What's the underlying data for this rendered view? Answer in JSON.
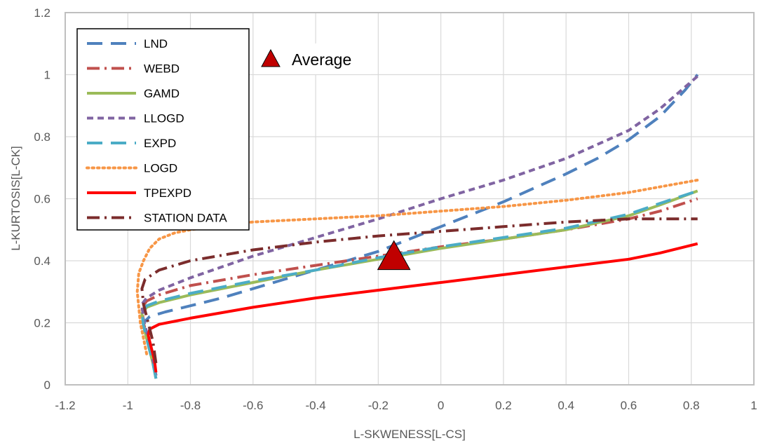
{
  "chart_data": {
    "type": "line",
    "title": "",
    "xlabel": "L-SKWENESS[L-CS]",
    "ylabel": "L-KURTOSIS[L-CK]",
    "xlim": [
      -1.2,
      1
    ],
    "ylim": [
      0,
      1.2
    ],
    "x_ticks": [
      -1.2,
      -1,
      -0.8,
      -0.6,
      -0.4,
      -0.2,
      0,
      0.2,
      0.4,
      0.6,
      0.8,
      1
    ],
    "x_tick_labels": [
      "-1.2",
      "-1",
      "-0.8",
      "-0.6",
      "-0.4",
      "-0.2",
      "0",
      "0.2",
      "0.4",
      "0.6",
      "0.8",
      "1"
    ],
    "y_ticks": [
      0,
      0.2,
      0.4,
      0.6,
      0.8,
      1,
      1.2
    ],
    "y_tick_labels": [
      "0",
      "0.2",
      "0.4",
      "0.6",
      "0.8",
      "1",
      "1.2"
    ],
    "grid": true,
    "legend_position": "top-left",
    "series": [
      {
        "name": "LND",
        "color": "#4f81bd",
        "dash": "long-dash",
        "x": [
          -0.91,
          -0.915,
          -0.93,
          -0.945,
          -0.95,
          -0.93,
          -0.88,
          -0.8,
          -0.7,
          -0.6,
          -0.5,
          -0.4,
          -0.3,
          -0.2,
          -0.1,
          0,
          0.1,
          0.2,
          0.3,
          0.4,
          0.5,
          0.6,
          0.7,
          0.78,
          0.82
        ],
        "values": [
          0.03,
          0.06,
          0.12,
          0.17,
          0.2,
          0.22,
          0.235,
          0.255,
          0.28,
          0.31,
          0.34,
          0.37,
          0.4,
          0.43,
          0.47,
          0.51,
          0.55,
          0.59,
          0.635,
          0.68,
          0.73,
          0.79,
          0.865,
          0.95,
          1.0
        ]
      },
      {
        "name": "WEBD",
        "color": "#c0504d",
        "dash": "dash-dot",
        "x": [
          -0.91,
          -0.92,
          -0.935,
          -0.95,
          -0.955,
          -0.94,
          -0.9,
          -0.8,
          -0.6,
          -0.4,
          -0.2,
          0,
          0.2,
          0.4,
          0.6,
          0.7,
          0.82
        ],
        "values": [
          0.03,
          0.08,
          0.14,
          0.2,
          0.25,
          0.27,
          0.29,
          0.32,
          0.355,
          0.385,
          0.415,
          0.445,
          0.47,
          0.5,
          0.535,
          0.56,
          0.6
        ]
      },
      {
        "name": "GAMD",
        "color": "#9bbb59",
        "dash": "solid",
        "x": [
          -0.91,
          -0.92,
          -0.935,
          -0.95,
          -0.955,
          -0.94,
          -0.9,
          -0.8,
          -0.6,
          -0.4,
          -0.2,
          0,
          0.2,
          0.4,
          0.6,
          0.7,
          0.82
        ],
        "values": [
          0.02,
          0.07,
          0.13,
          0.19,
          0.23,
          0.25,
          0.265,
          0.29,
          0.33,
          0.37,
          0.405,
          0.44,
          0.47,
          0.5,
          0.545,
          0.58,
          0.625
        ]
      },
      {
        "name": "LLOGD",
        "color": "#8064a2",
        "dash": "short-dash",
        "x": [
          -0.91,
          -0.92,
          -0.935,
          -0.95,
          -0.955,
          -0.94,
          -0.9,
          -0.8,
          -0.6,
          -0.4,
          -0.2,
          0,
          0.2,
          0.4,
          0.6,
          0.7,
          0.82
        ],
        "values": [
          0.03,
          0.08,
          0.15,
          0.21,
          0.26,
          0.28,
          0.305,
          0.345,
          0.415,
          0.475,
          0.535,
          0.6,
          0.66,
          0.73,
          0.82,
          0.89,
          0.995
        ]
      },
      {
        "name": "EXPD",
        "color": "#4bacc6",
        "dash": "long-dash",
        "x": [
          -0.91,
          -0.92,
          -0.935,
          -0.95,
          -0.955,
          -0.94,
          -0.9,
          -0.8,
          -0.6,
          -0.4,
          -0.2,
          0,
          0.2,
          0.4,
          0.6,
          0.7,
          0.82
        ],
        "values": [
          0.02,
          0.07,
          0.13,
          0.19,
          0.235,
          0.255,
          0.27,
          0.295,
          0.335,
          0.37,
          0.41,
          0.445,
          0.475,
          0.505,
          0.55,
          0.585,
          0.625
        ]
      },
      {
        "name": "LOGD",
        "color": "#f79646",
        "dash": "dotted",
        "x": [
          -0.94,
          -0.96,
          -0.97,
          -0.965,
          -0.95,
          -0.93,
          -0.9,
          -0.85,
          -0.8,
          -0.7,
          -0.6,
          -0.4,
          -0.2,
          0,
          0.2,
          0.4,
          0.6,
          0.82
        ],
        "values": [
          0.1,
          0.2,
          0.3,
          0.36,
          0.4,
          0.44,
          0.47,
          0.49,
          0.5,
          0.515,
          0.525,
          0.535,
          0.545,
          0.56,
          0.575,
          0.595,
          0.62,
          0.66
        ]
      },
      {
        "name": "TPEXPD",
        "color": "#ff0000",
        "dash": "solid",
        "x": [
          -0.91,
          -0.915,
          -0.925,
          -0.935,
          -0.93,
          -0.9,
          -0.8,
          -0.6,
          -0.4,
          -0.2,
          0,
          0.2,
          0.4,
          0.6,
          0.7,
          0.82
        ],
        "values": [
          0.04,
          0.08,
          0.12,
          0.16,
          0.18,
          0.195,
          0.215,
          0.25,
          0.28,
          0.305,
          0.33,
          0.355,
          0.38,
          0.405,
          0.425,
          0.455
        ]
      },
      {
        "name": "STATION DATA",
        "color": "#7b2c2c",
        "dash": "dash-dot",
        "x": [
          -0.91,
          -0.92,
          -0.935,
          -0.95,
          -0.955,
          -0.945,
          -0.9,
          -0.8,
          -0.6,
          -0.4,
          -0.2,
          0,
          0.2,
          0.4,
          0.6,
          0.7,
          0.82
        ],
        "values": [
          0.07,
          0.14,
          0.2,
          0.26,
          0.31,
          0.34,
          0.37,
          0.4,
          0.435,
          0.46,
          0.48,
          0.495,
          0.51,
          0.525,
          0.535,
          0.535,
          0.535
        ]
      }
    ],
    "annotations": [
      {
        "name": "Average",
        "marker": "triangle",
        "color": "#c00000",
        "x": -0.15,
        "y": 0.41
      }
    ]
  }
}
